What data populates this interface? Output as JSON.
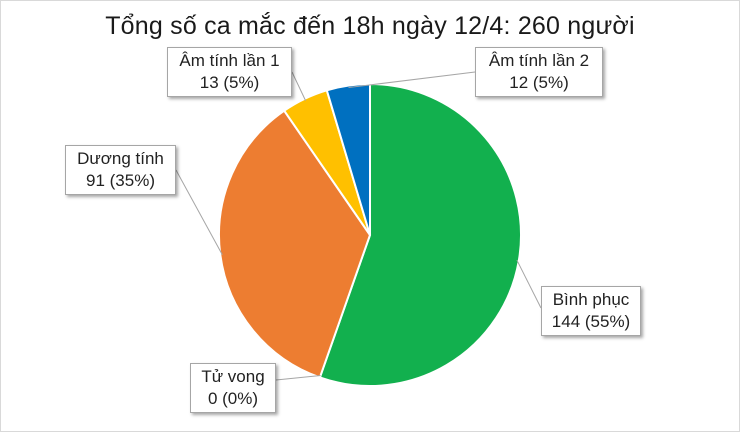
{
  "chart_data": {
    "type": "pie",
    "title": "Tổng số ca mắc đến 18h ngày 12/4: 260 người",
    "slices": [
      {
        "label": "Bình phục",
        "value": 144,
        "value_label": "144 (55%)",
        "color": "#12b04e"
      },
      {
        "label": "Tử vong",
        "value": 0,
        "value_label": "0 (0%)",
        "color": "#7f7f7f"
      },
      {
        "label": "Dương tính",
        "value": 91,
        "value_label": "91 (35%)",
        "color": "#ed7d31"
      },
      {
        "label": "Âm tính lần 1",
        "value": 13,
        "value_label": "13 (5%)",
        "color": "#ffc000"
      },
      {
        "label": "Âm tính lần 2",
        "value": 12,
        "value_label": "12 (5%)",
        "color": "#0070c0"
      }
    ]
  }
}
